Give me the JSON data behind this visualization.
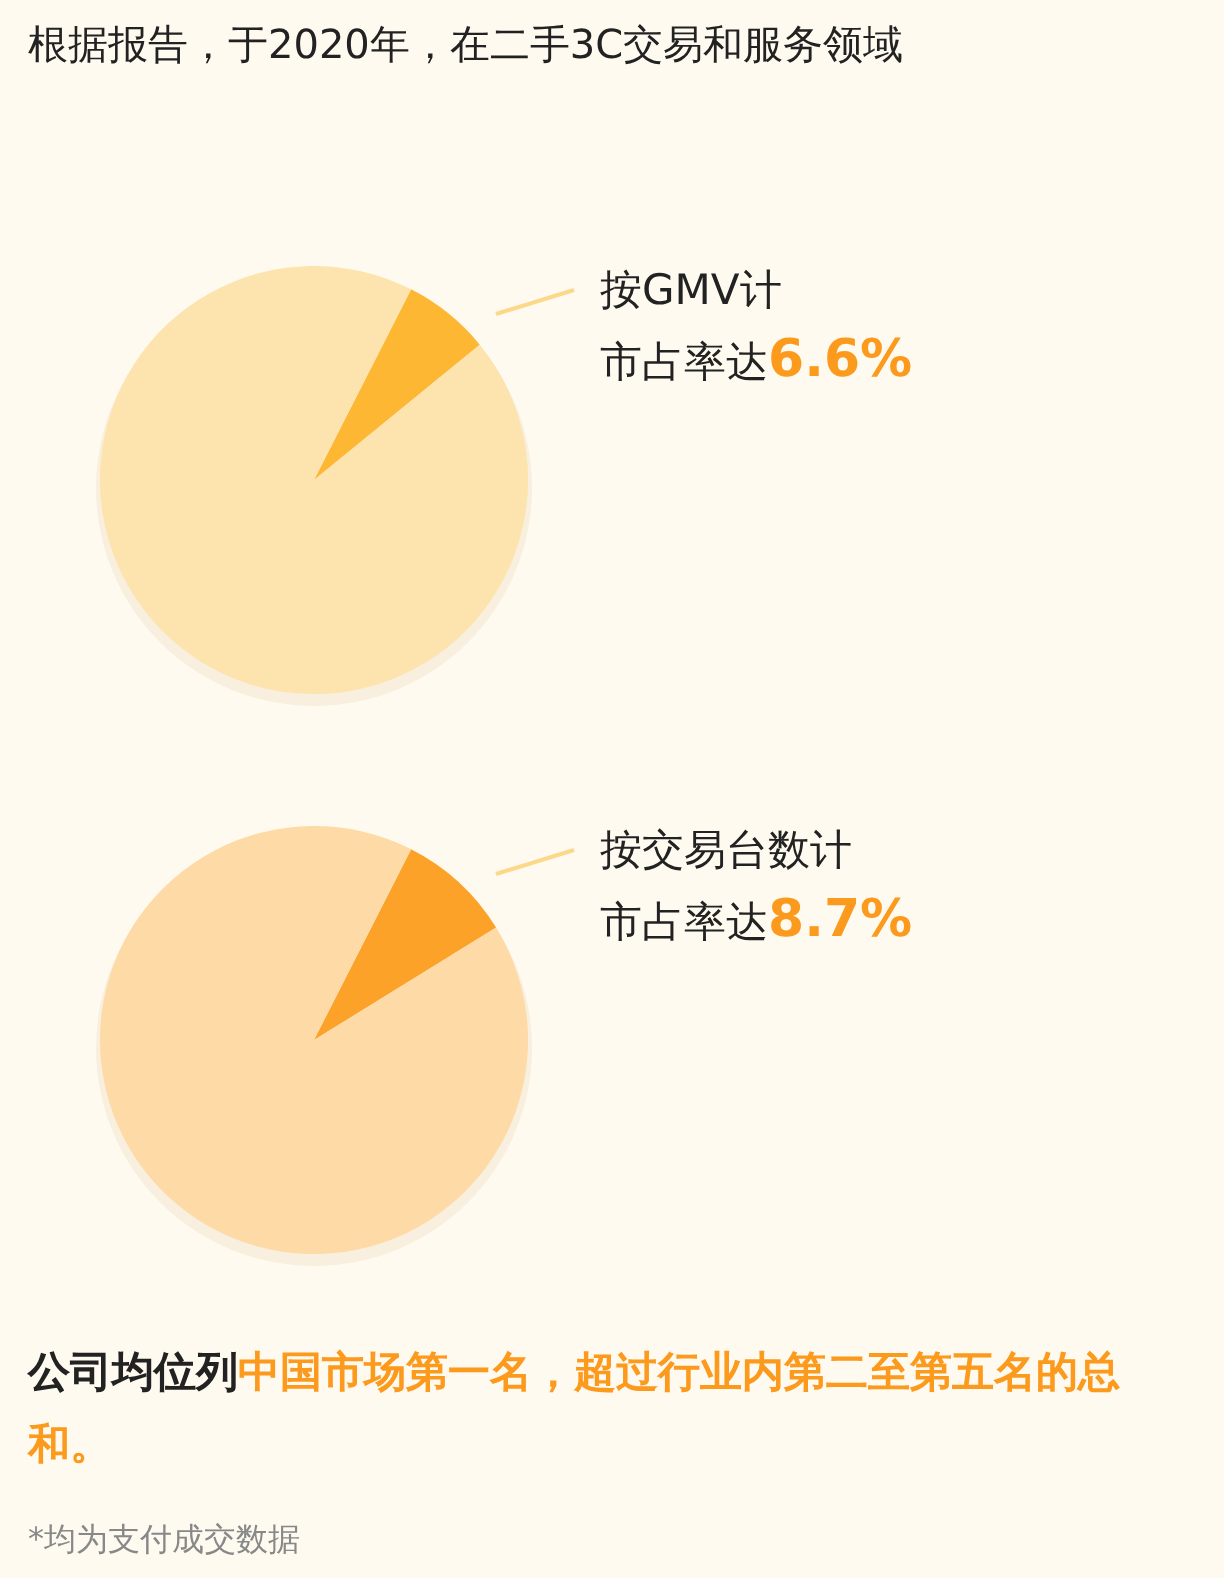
{
  "chart_data": [
    {
      "type": "pie",
      "title": "根据报告，于2020年，在二手3C交易和服务领域",
      "categories": [
        null,
        null
      ],
      "values": [
        6.6,
        93.4
      ],
      "colors": [
        "#fdb733",
        "#fde3ad"
      ],
      "annotations": [
        "按GMV计",
        "市占率达",
        "6.6%"
      ]
    },
    {
      "type": "pie",
      "categories": [
        null,
        null
      ],
      "values": [
        8.7,
        91.3
      ],
      "colors": [
        "#fca228",
        "#fddaa6"
      ],
      "annotations": [
        "按交易台数计",
        "市占率达",
        "8.7%",
        "公司均位列",
        "中国市场第一名，超过行业内第二至第五名的总和。",
        "*均为支付成交数据"
      ]
    }
  ]
}
